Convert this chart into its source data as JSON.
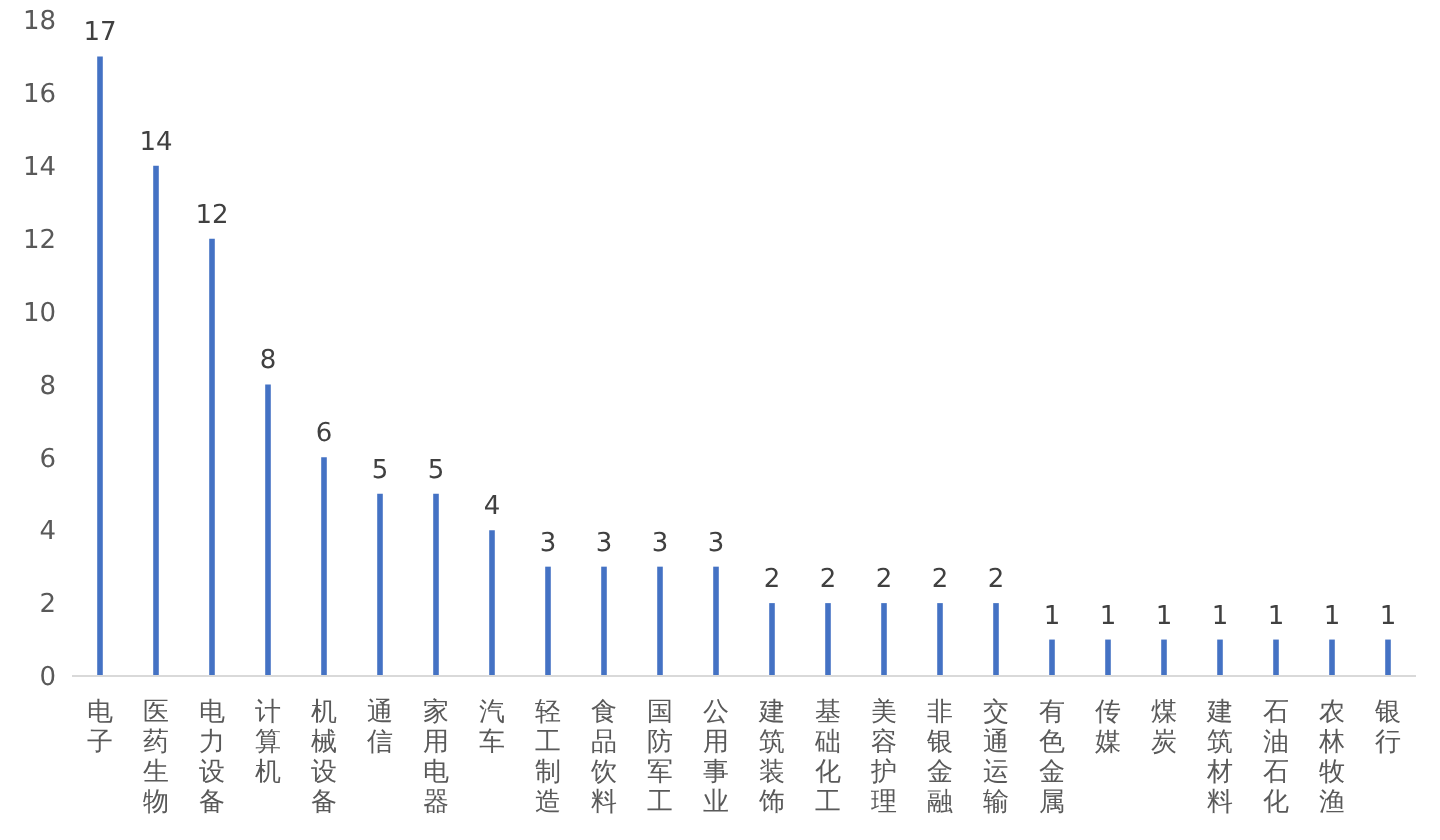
{
  "chart_data": {
    "type": "bar",
    "categories": [
      "电子",
      "医药生物",
      "电力设备",
      "计算机",
      "机械设备",
      "通信",
      "家用电器",
      "汽车",
      "轻工制造",
      "食品饮料",
      "国防军工",
      "公用事业",
      "建筑装饰",
      "基础化工",
      "美容护理",
      "非银金融",
      "交通运输",
      "有色金属",
      "传媒",
      "煤炭",
      "建筑材料",
      "石油石化",
      "农林牧渔",
      "银行"
    ],
    "values": [
      17,
      14,
      12,
      8,
      6,
      5,
      5,
      4,
      3,
      3,
      3,
      3,
      2,
      2,
      2,
      2,
      2,
      1,
      1,
      1,
      1,
      1,
      1,
      1
    ],
    "color": "#4472c4",
    "ylim": [
      0,
      18
    ],
    "yticks": [
      0,
      2,
      4,
      6,
      8,
      10,
      12,
      14,
      16,
      18
    ],
    "grid": false,
    "legend": false,
    "data_labels": true
  }
}
